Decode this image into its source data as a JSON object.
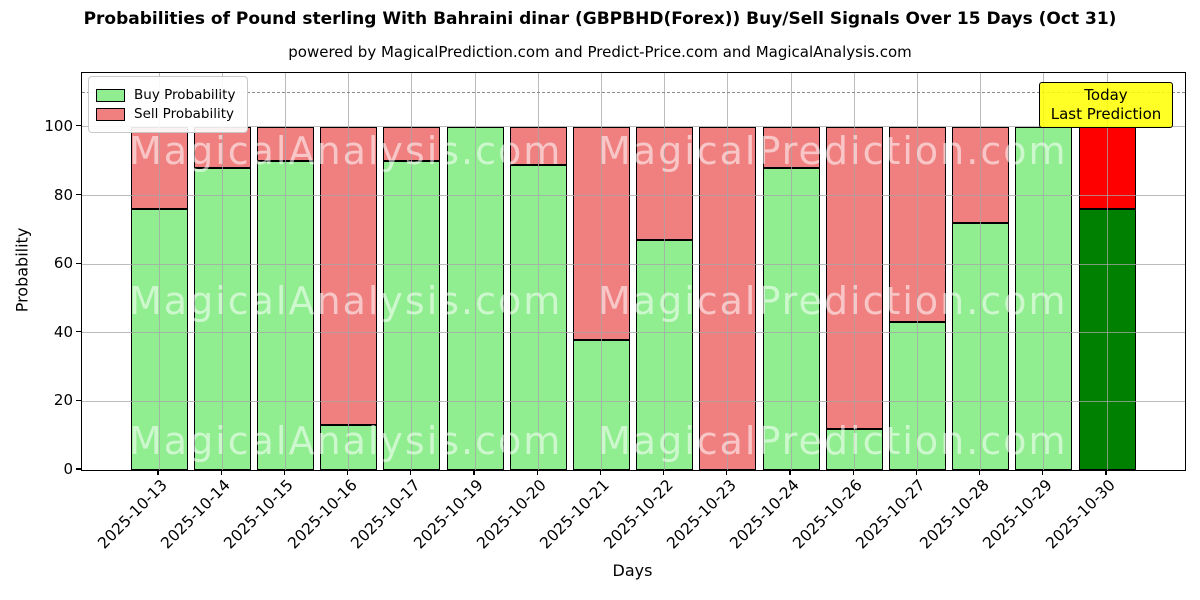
{
  "chart_data": {
    "type": "bar",
    "stacked": true,
    "title": "Probabilities of Pound sterling With Bahraini dinar (GBPBHD(Forex)) Buy/Sell Signals Over 15 Days (Oct 31)",
    "subtitle": "powered by MagicalPrediction.com and Predict-Price.com and MagicalAnalysis.com",
    "xlabel": "Days",
    "ylabel": "Probability",
    "ylim": [
      0,
      115.7
    ],
    "yticks": [
      0,
      20,
      40,
      60,
      80,
      100
    ],
    "dashed_guide_y": 110,
    "grid": true,
    "legend_position": "upper-left",
    "categories": [
      "2025-10-13",
      "2025-10-14",
      "2025-10-15",
      "2025-10-16",
      "2025-10-17",
      "2025-10-19",
      "2025-10-20",
      "2025-10-21",
      "2025-10-22",
      "2025-10-23",
      "2025-10-24",
      "2025-10-26",
      "2025-10-27",
      "2025-10-28",
      "2025-10-29",
      "2025-10-30"
    ],
    "series": [
      {
        "name": "Buy Probability",
        "color": "#90EE90",
        "today_color": "#008000",
        "values": [
          76,
          88,
          90,
          13,
          90,
          100,
          89,
          38,
          67,
          0,
          88,
          12,
          43,
          72,
          100,
          76
        ]
      },
      {
        "name": "Sell Probability",
        "color": "#F08080",
        "today_color": "#FF0000",
        "values": [
          24,
          12,
          10,
          87,
          10,
          0,
          11,
          62,
          33,
          100,
          12,
          88,
          57,
          28,
          0,
          24
        ]
      }
    ],
    "today_index": 15,
    "annotation": {
      "line1": "Today",
      "line2": "Last Prediction",
      "bg_color": "#FFFF00"
    },
    "watermarks": {
      "left_text": "MagicalAnalysis.com",
      "right_text": "MagicalPrediction.com"
    }
  }
}
